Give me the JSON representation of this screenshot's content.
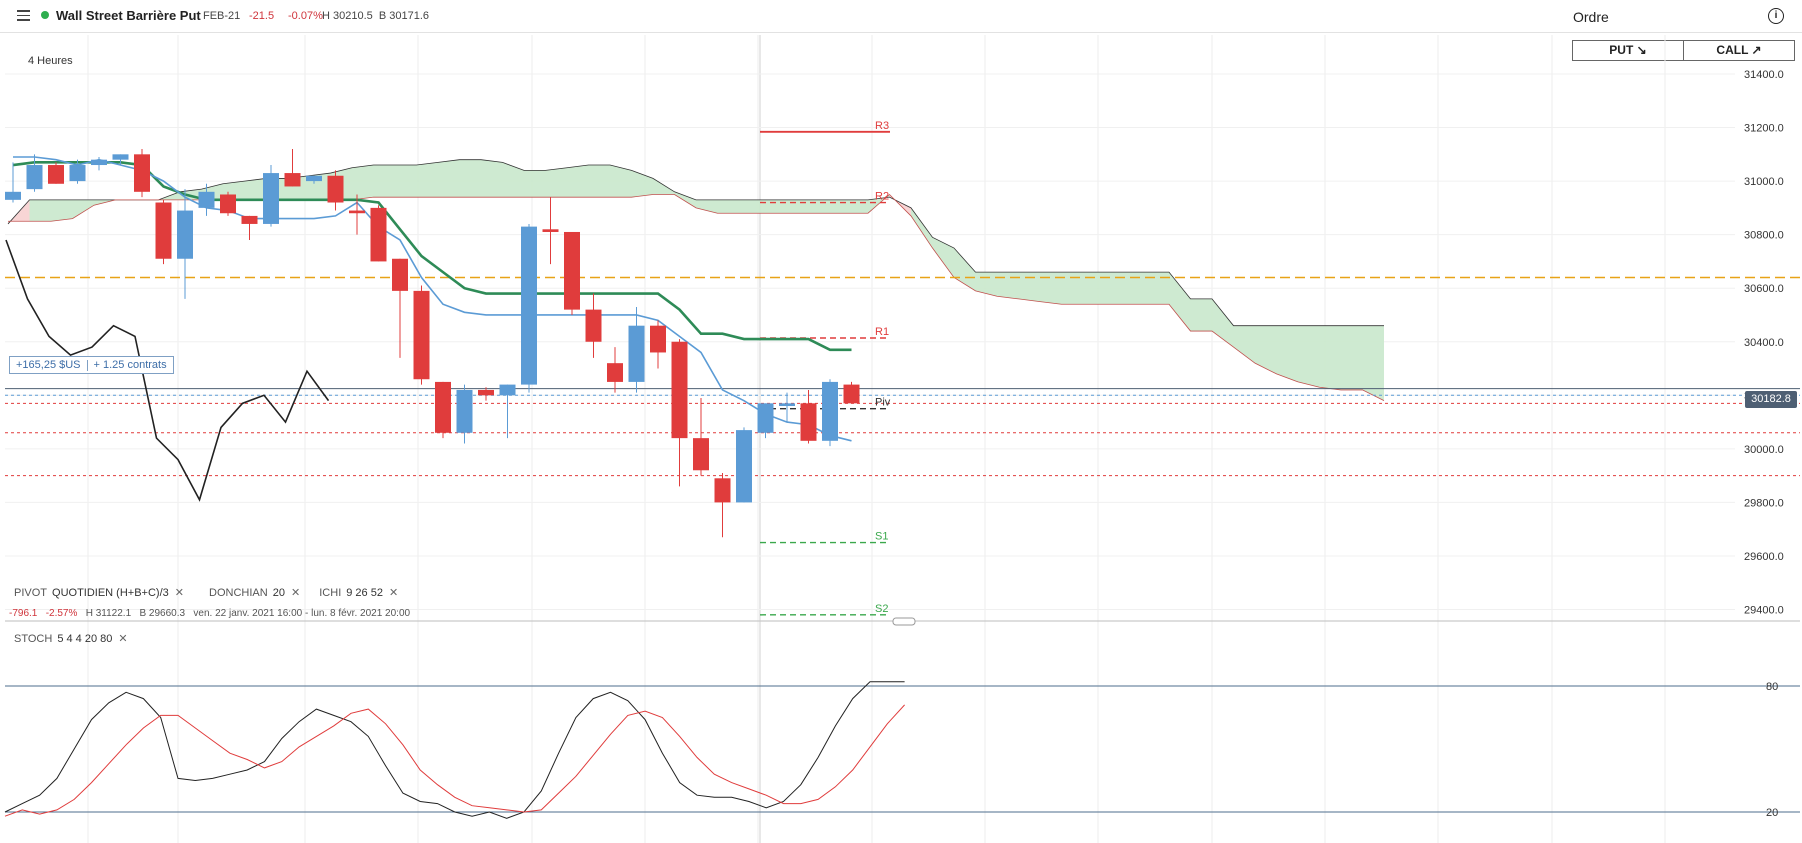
{
  "header": {
    "title": "Wall Street Barrière Put",
    "expiry": "FEB-21",
    "change": "-21.5",
    "change_pct": "-0.07%",
    "high_low": "H 30210.5  B 30171.6",
    "order_title": "Ordre",
    "put_label": "PUT ↘",
    "call_label": "CALL ↗",
    "status_color": "#2eae4e"
  },
  "timeframe": "4 Heures",
  "position_label": {
    "pnl": "+165,25 $US",
    "size": "+ 1.25 contrats"
  },
  "current_price": "30182.8",
  "legend": {
    "pivot": {
      "name": "PIVOT",
      "params": "QUOTIDIEN  (H+B+C)/3"
    },
    "donchian": {
      "name": "DONCHIAN",
      "params": "20"
    },
    "ichimoku": {
      "name": "ICHI",
      "params": "9  26  52"
    },
    "stoch": {
      "name": "STOCH",
      "params": "5  4  4  20  80"
    },
    "range_change": "-796.1",
    "range_pct": "-2.57%",
    "range_hb": "H 31122.1   B 29660.3",
    "range_dates": "ven. 22 janv. 2021 16:00 - lun. 8 févr. 2021 20:00"
  },
  "colors": {
    "bull": "#5b9bd5",
    "bear": "#e03c3c",
    "conversion": "#2e8b57",
    "kumo_bull": "#c9e8cc",
    "kumo_bear": "#f7d0d0",
    "orange": "#e8a317",
    "stoch_k": "#222222",
    "stoch_d": "#e03c3c"
  },
  "chart_data": [
    {
      "type": "candlestick",
      "title": "",
      "ylim": [
        29340,
        31520
      ],
      "yticks": [
        "31400.0",
        "31200.0",
        "31000.0",
        "30800.0",
        "30600.0",
        "30400.0",
        "30200.0",
        "30000.0",
        "29800.0",
        "29600.0",
        "29400.0"
      ],
      "ytick_values": [
        31400,
        31200,
        31000,
        30800,
        30600,
        30400,
        30200,
        30000,
        29800,
        29600,
        29400
      ],
      "candles": [
        {
          "o": 30930,
          "h": 31070,
          "l": 30920,
          "c": 30960
        },
        {
          "o": 30970,
          "h": 31100,
          "l": 30960,
          "c": 31060
        },
        {
          "o": 31060,
          "h": 31070,
          "l": 30990,
          "c": 30990
        },
        {
          "o": 31000,
          "h": 31080,
          "l": 30990,
          "c": 31060
        },
        {
          "o": 31060,
          "h": 31090,
          "l": 31040,
          "c": 31080
        },
        {
          "o": 31080,
          "h": 31100,
          "l": 31060,
          "c": 31100
        },
        {
          "o": 31100,
          "h": 31120,
          "l": 30940,
          "c": 30960
        },
        {
          "o": 30920,
          "h": 30930,
          "l": 30690,
          "c": 30710
        },
        {
          "o": 30710,
          "h": 30970,
          "l": 30560,
          "c": 30890
        },
        {
          "o": 30900,
          "h": 30990,
          "l": 30870,
          "c": 30960
        },
        {
          "o": 30950,
          "h": 30960,
          "l": 30870,
          "c": 30880
        },
        {
          "o": 30870,
          "h": 30870,
          "l": 30780,
          "c": 30840
        },
        {
          "o": 30840,
          "h": 31060,
          "l": 30830,
          "c": 31030
        },
        {
          "o": 31030,
          "h": 31120,
          "l": 30980,
          "c": 30980
        },
        {
          "o": 31000,
          "h": 31020,
          "l": 30990,
          "c": 31020
        },
        {
          "o": 31020,
          "h": 31040,
          "l": 30890,
          "c": 30920
        },
        {
          "o": 30890,
          "h": 30950,
          "l": 30800,
          "c": 30880
        },
        {
          "o": 30900,
          "h": 30910,
          "l": 30700,
          "c": 30700
        },
        {
          "o": 30710,
          "h": 30710,
          "l": 30340,
          "c": 30590
        },
        {
          "o": 30590,
          "h": 30610,
          "l": 30240,
          "c": 30260
        },
        {
          "o": 30250,
          "h": 30250,
          "l": 30040,
          "c": 30060
        },
        {
          "o": 30060,
          "h": 30240,
          "l": 30020,
          "c": 30220
        },
        {
          "o": 30220,
          "h": 30230,
          "l": 30180,
          "c": 30200
        },
        {
          "o": 30200,
          "h": 30240,
          "l": 30040,
          "c": 30240
        },
        {
          "o": 30240,
          "h": 30840,
          "l": 30210,
          "c": 30830
        },
        {
          "o": 30820,
          "h": 30940,
          "l": 30690,
          "c": 30810
        },
        {
          "o": 30810,
          "h": 30810,
          "l": 30500,
          "c": 30520
        },
        {
          "o": 30520,
          "h": 30580,
          "l": 30340,
          "c": 30400
        },
        {
          "o": 30320,
          "h": 30380,
          "l": 30210,
          "c": 30250
        },
        {
          "o": 30250,
          "h": 30530,
          "l": 30210,
          "c": 30460
        },
        {
          "o": 30460,
          "h": 30480,
          "l": 30300,
          "c": 30360
        },
        {
          "o": 30400,
          "h": 30410,
          "l": 29860,
          "c": 30040
        },
        {
          "o": 30040,
          "h": 30190,
          "l": 29900,
          "c": 29920
        },
        {
          "o": 29890,
          "h": 29910,
          "l": 29670,
          "c": 29800
        },
        {
          "o": 29800,
          "h": 30080,
          "l": 29800,
          "c": 30070
        },
        {
          "o": 30060,
          "h": 30170,
          "l": 30040,
          "c": 30170
        },
        {
          "o": 30160,
          "h": 30210,
          "l": 30100,
          "c": 30170
        },
        {
          "o": 30170,
          "h": 30220,
          "l": 30020,
          "c": 30030
        },
        {
          "o": 30030,
          "h": 30260,
          "l": 30010,
          "c": 30250
        },
        {
          "o": 30240,
          "h": 30250,
          "l": 30180,
          "c": 30170
        }
      ],
      "donchian_mid": [
        31060,
        31070,
        31070,
        31070,
        31070,
        31070,
        31060,
        30980,
        30950,
        30930,
        30930,
        30930,
        30930,
        30930,
        30930,
        30930,
        30930,
        30920,
        30820,
        30720,
        30660,
        30600,
        30580,
        30580,
        30580,
        30580,
        30580,
        30580,
        30580,
        30580,
        30580,
        30520,
        30430,
        30430,
        30410,
        30410,
        30410,
        30410,
        30370,
        30370
      ],
      "donchian_low": [
        31090,
        31090,
        31080,
        31060,
        31080,
        31060,
        31040,
        31000,
        30940,
        30900,
        30890,
        30860,
        30860,
        30860,
        30860,
        30870,
        30920,
        30830,
        30780,
        30640,
        30540,
        30510,
        30500,
        30500,
        30500,
        30500,
        30500,
        30500,
        30500,
        30500,
        30480,
        30420,
        30360,
        30220,
        30180,
        30130,
        30100,
        30090,
        30050,
        30030
      ],
      "kumo_upper": [
        30840,
        30930,
        30930,
        30930,
        30930,
        30930,
        30930,
        30930,
        30960,
        30970,
        30990,
        31000,
        31010,
        31010,
        31020,
        31030,
        31050,
        31060,
        31060,
        31060,
        31070,
        31080,
        31080,
        31070,
        31040,
        31040,
        31050,
        31060,
        31060,
        31040,
        31010,
        30960,
        30930,
        30930,
        30930,
        30930,
        30930,
        30930,
        30930,
        30930,
        30930,
        30940,
        30900,
        30790,
        30750,
        30660,
        30660,
        30660,
        30660,
        30660,
        30660,
        30660,
        30660,
        30660,
        30660,
        30560,
        30560,
        30460,
        30460,
        30460,
        30460,
        30460,
        30460,
        30460,
        30460
      ],
      "kumo_lower": [
        30850,
        30850,
        30850,
        30860,
        30910,
        30930,
        30930,
        30930,
        30930,
        30930,
        30930,
        30930,
        30930,
        30930,
        30930,
        30930,
        30930,
        30940,
        30940,
        30940,
        30940,
        30940,
        30940,
        30940,
        30940,
        30940,
        30940,
        30940,
        30940,
        30940,
        30950,
        30950,
        30900,
        30880,
        30880,
        30880,
        30880,
        30880,
        30880,
        30880,
        30880,
        30950,
        30870,
        30750,
        30640,
        30590,
        30570,
        30560,
        30550,
        30540,
        30540,
        30540,
        30540,
        30540,
        30540,
        30440,
        30440,
        30380,
        30320,
        30280,
        30250,
        30230,
        30220,
        30220,
        30180
      ],
      "lagging_span": [
        30780,
        30560,
        30420,
        30350,
        30380,
        30460,
        30420,
        30040,
        29960,
        29810,
        30080,
        30170,
        30200,
        30100,
        30290,
        30180
      ],
      "horizontal_levels": [
        {
          "label": "",
          "value": 30640,
          "style": "dashed",
          "color": "#e8a317"
        },
        {
          "label": "",
          "value": 30200,
          "style": "dashed",
          "color": "#5b9bd5"
        },
        {
          "label": "",
          "value": 30170,
          "style": "dashed",
          "color": "#e03c3c"
        },
        {
          "label": "",
          "value": 30060,
          "style": "dashed",
          "color": "#e03c3c"
        },
        {
          "label": "",
          "value": 29900,
          "style": "dashed",
          "color": "#e03c3c"
        },
        {
          "label": "",
          "value": 30225,
          "style": "solid",
          "color": "#4e5f73"
        }
      ],
      "pivots": [
        {
          "label": "R3",
          "value": 31184,
          "color": "#e03c3c",
          "style": "solid"
        },
        {
          "label": "R2",
          "value": 30920,
          "color": "#e03c3c",
          "style": "dashed"
        },
        {
          "label": "R1",
          "value": 30414,
          "color": "#e03c3c",
          "style": "dashed"
        },
        {
          "label": "Piv",
          "value": 30150,
          "color": "#333333",
          "style": "dashed"
        },
        {
          "label": "S1",
          "value": 29650,
          "color": "#3aa84c",
          "style": "dashed"
        },
        {
          "label": "S2",
          "value": 29380,
          "color": "#3aa84c",
          "style": "dashed"
        }
      ]
    },
    {
      "type": "line",
      "title": "",
      "ylim": [
        14,
        88
      ],
      "yticks": [
        "80",
        "20"
      ],
      "ytick_values": [
        80,
        20
      ],
      "series": [
        {
          "values": [
            20,
            24,
            28,
            36,
            50,
            64,
            72,
            77,
            74,
            65,
            36,
            35,
            36,
            38,
            40,
            44,
            55,
            63,
            69,
            66,
            63,
            56,
            42,
            29,
            25,
            24,
            20,
            18,
            20,
            17,
            20,
            30,
            48,
            65,
            74,
            77,
            73,
            64,
            48,
            34,
            28,
            27,
            27,
            25,
            22,
            25,
            33,
            46,
            61,
            74,
            82,
            82,
            82
          ]
        },
        {
          "values": [
            18,
            21,
            19,
            21,
            26,
            34,
            43,
            52,
            60,
            66,
            66,
            60,
            54,
            48,
            45,
            41,
            44,
            51,
            56,
            61,
            67,
            69,
            62,
            52,
            40,
            33,
            27,
            23,
            22,
            21,
            20,
            21,
            29,
            37,
            47,
            57,
            66,
            68,
            65,
            56,
            46,
            38,
            34,
            31,
            28,
            24,
            24,
            26,
            32,
            40,
            51,
            62,
            71
          ]
        }
      ]
    }
  ]
}
